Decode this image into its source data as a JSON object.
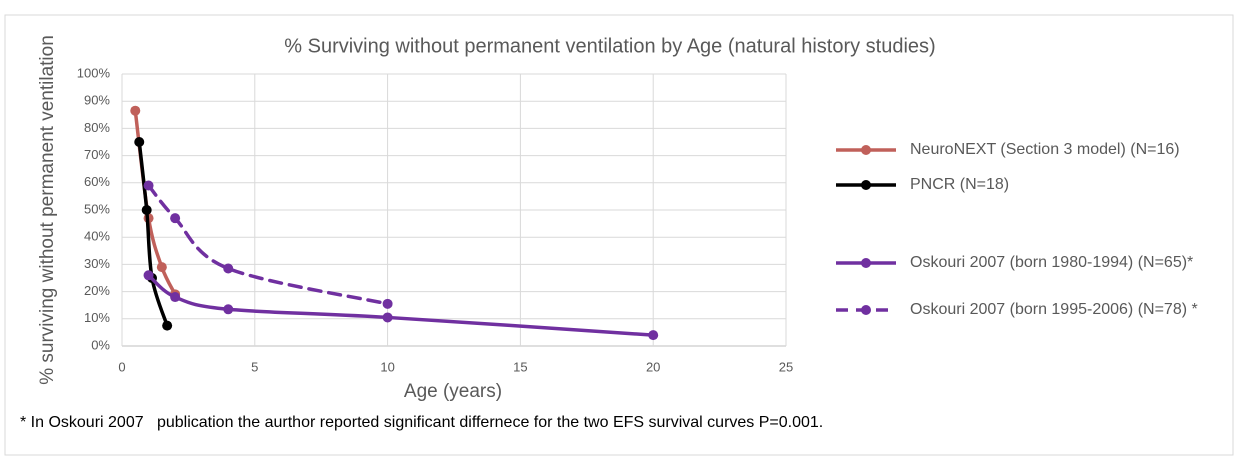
{
  "chart_data": {
    "type": "line",
    "title": "% Surviving without permanent ventilation by Age (natural history studies)",
    "x_label": "Age (years)",
    "y_label": "% surviving without permanent ventilation",
    "footnote": "* In Oskouri 2007   publication the aurthor reported significant differnece for the two EFS survival curves P=0.001.",
    "xlim": [
      0,
      25
    ],
    "xticks": [
      0,
      5,
      10,
      15,
      20,
      25
    ],
    "ylim": [
      0,
      100
    ],
    "yticks": [
      {
        "value": 0,
        "label": "0%"
      },
      {
        "value": 10,
        "label": "10%"
      },
      {
        "value": 20,
        "label": "20%"
      },
      {
        "value": 30,
        "label": "30%"
      },
      {
        "value": 40,
        "label": "40%"
      },
      {
        "value": 50,
        "label": "50%"
      },
      {
        "value": 60,
        "label": "60%"
      },
      {
        "value": 70,
        "label": "70%"
      },
      {
        "value": 80,
        "label": "80%"
      },
      {
        "value": 90,
        "label": "90%"
      },
      {
        "value": 100,
        "label": "100%"
      }
    ],
    "grid": true,
    "legend": "right",
    "series": [
      {
        "name": "NeuroNEXT (Section 3 model) (N=16)",
        "color": "#c0605a",
        "dashed": false,
        "smooth": true,
        "x": [
          0.5,
          1,
          1.5,
          2
        ],
        "values": [
          86.5,
          47,
          29,
          19
        ]
      },
      {
        "name": "PNCR (N=18)",
        "color": "#000000",
        "dashed": false,
        "smooth": true,
        "x": [
          0.65,
          0.93,
          1.13,
          1.7
        ],
        "values": [
          75,
          50,
          25,
          7.5
        ]
      },
      {
        "name": "Oskouri 2007 (born 1980-1994) (N=65)*",
        "color": "#7030a0",
        "dashed": false,
        "smooth": true,
        "x": [
          1,
          2,
          4,
          10,
          20
        ],
        "values": [
          26,
          18,
          13.5,
          10.5,
          4
        ]
      },
      {
        "name": "Oskouri 2007 (born 1995-2006) (N=78) *",
        "color": "#7030a0",
        "dashed": true,
        "smooth": true,
        "x": [
          1,
          2,
          4,
          10
        ],
        "values": [
          59,
          47,
          28.5,
          15.5
        ]
      }
    ]
  }
}
